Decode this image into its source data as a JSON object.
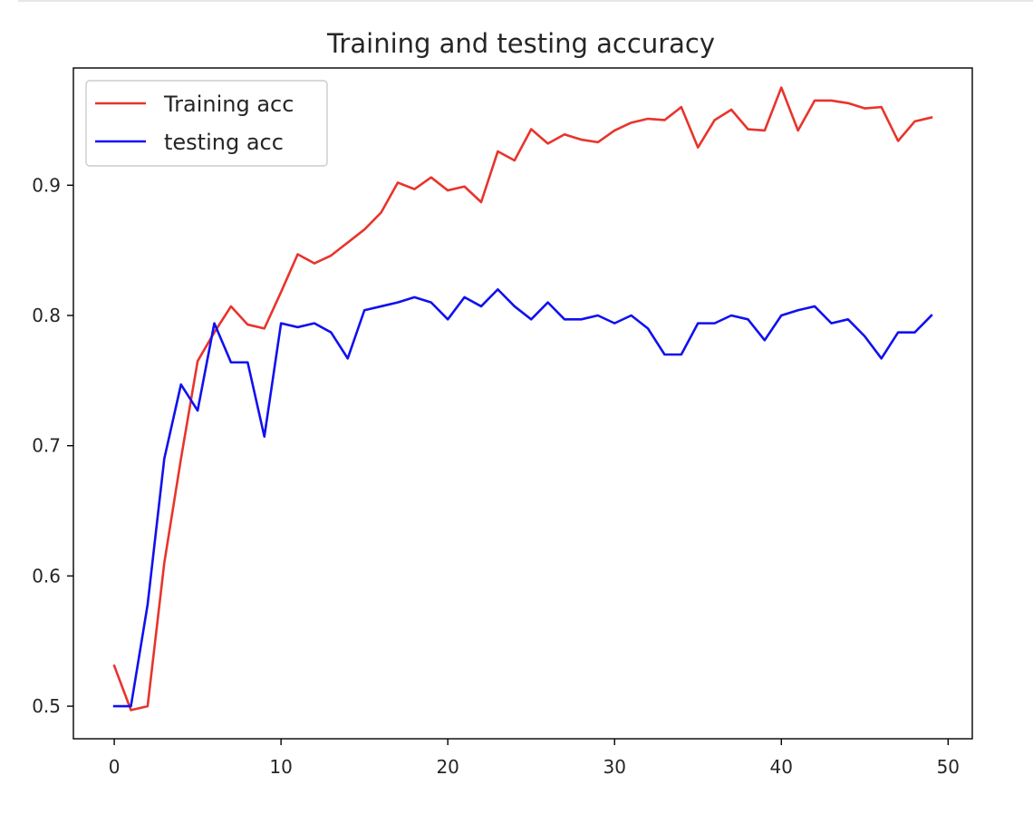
{
  "chart_data": {
    "type": "line",
    "title": "Training and testing accuracy",
    "xlabel": "",
    "ylabel": "",
    "xlim": [
      -2.45,
      51.45
    ],
    "ylim": [
      0.475,
      0.99
    ],
    "xticks": [
      0,
      10,
      20,
      30,
      40,
      50
    ],
    "yticks": [
      0.5,
      0.6,
      0.7,
      0.8,
      0.9
    ],
    "xtick_labels": [
      "0",
      "10",
      "20",
      "30",
      "40",
      "50"
    ],
    "ytick_labels": [
      "0.5",
      "0.6",
      "0.7",
      "0.8",
      "0.9"
    ],
    "grid": false,
    "legend_position": "top-left",
    "x": [
      0,
      1,
      2,
      3,
      4,
      5,
      6,
      7,
      8,
      9,
      10,
      11,
      12,
      13,
      14,
      15,
      16,
      17,
      18,
      19,
      20,
      21,
      22,
      23,
      24,
      25,
      26,
      27,
      28,
      29,
      30,
      31,
      32,
      33,
      34,
      35,
      36,
      37,
      38,
      39,
      40,
      41,
      42,
      43,
      44,
      45,
      46,
      47,
      48,
      49
    ],
    "series": [
      {
        "name": "Training acc",
        "color": "#e8342c",
        "values": [
          0.531,
          0.497,
          0.5,
          0.61,
          0.69,
          0.765,
          0.787,
          0.807,
          0.793,
          0.79,
          0.818,
          0.847,
          0.84,
          0.846,
          0.856,
          0.866,
          0.879,
          0.902,
          0.897,
          0.906,
          0.896,
          0.899,
          0.887,
          0.926,
          0.919,
          0.943,
          0.932,
          0.939,
          0.935,
          0.933,
          0.942,
          0.948,
          0.951,
          0.95,
          0.96,
          0.929,
          0.95,
          0.958,
          0.943,
          0.942,
          0.975,
          0.942,
          0.965,
          0.965,
          0.963,
          0.959,
          0.96,
          0.934,
          0.949,
          0.952
        ]
      },
      {
        "name": "testing acc",
        "color": "#1010f0",
        "values": [
          0.5,
          0.5,
          0.578,
          0.69,
          0.747,
          0.727,
          0.794,
          0.764,
          0.764,
          0.707,
          0.794,
          0.791,
          0.794,
          0.787,
          0.767,
          0.804,
          0.807,
          0.81,
          0.814,
          0.81,
          0.797,
          0.814,
          0.807,
          0.82,
          0.807,
          0.797,
          0.81,
          0.797,
          0.797,
          0.8,
          0.794,
          0.8,
          0.79,
          0.77,
          0.77,
          0.794,
          0.794,
          0.8,
          0.797,
          0.781,
          0.8,
          0.804,
          0.807,
          0.794,
          0.797,
          0.784,
          0.767,
          0.787,
          0.787,
          0.8
        ]
      }
    ]
  }
}
